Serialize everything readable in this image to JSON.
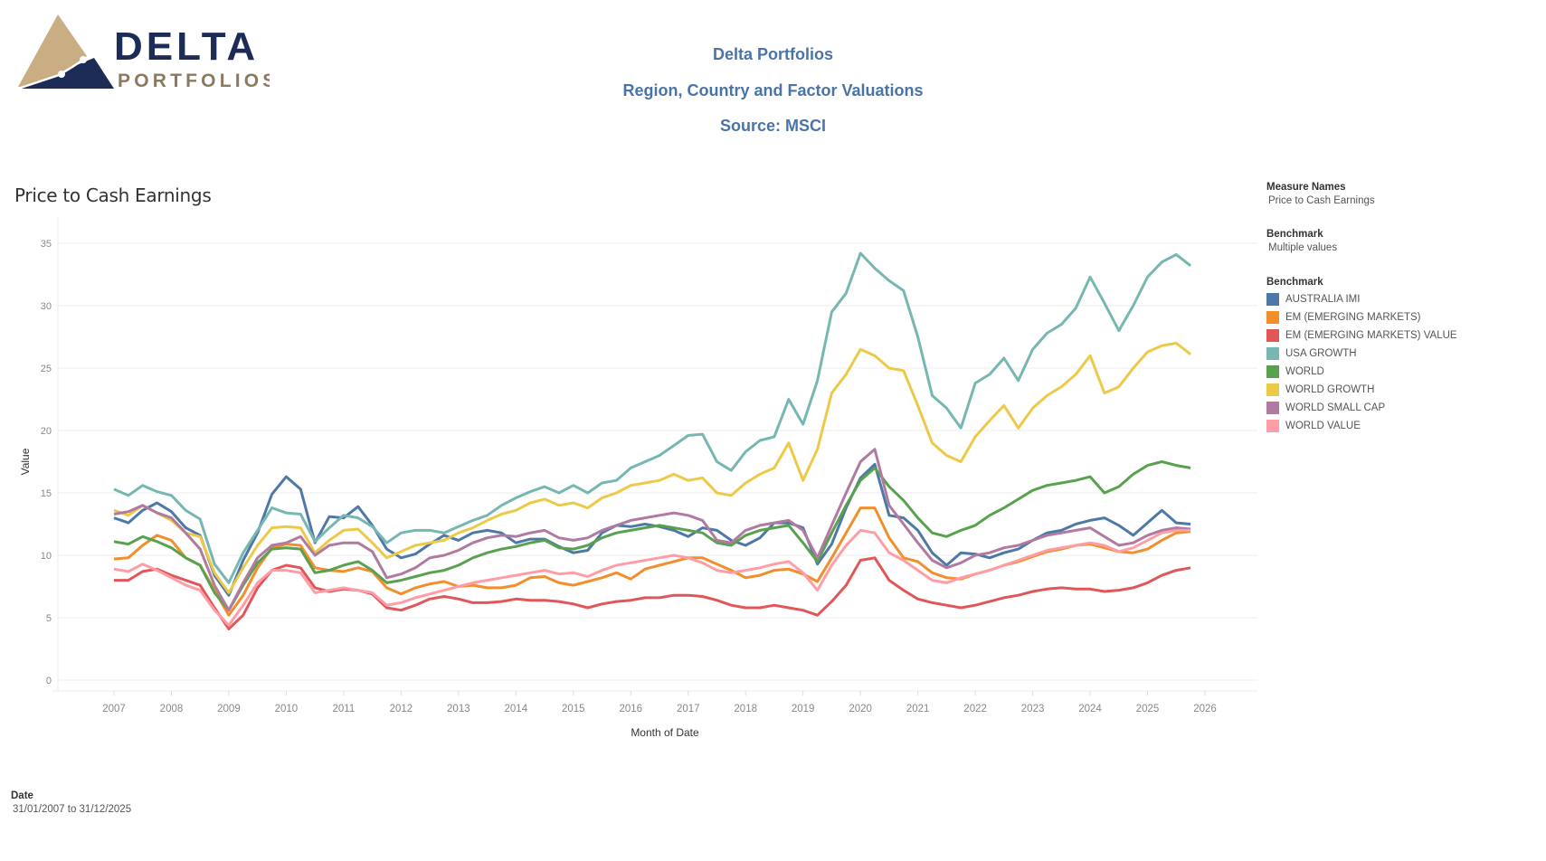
{
  "logo": {
    "word1": "DELTA",
    "word2": "PORTFOLIOS",
    "colors": {
      "navy": "#1d2b57",
      "gold": "#c8ae82",
      "taupe": "#8b7a62"
    }
  },
  "header": {
    "line1": "Delta Portfolios",
    "line2": "Region, Country and Factor Valuations",
    "line3": "Source: MSCI"
  },
  "filters": {
    "measure_names_label": "Measure Names",
    "measure_names_value": "Price to Cash Earnings",
    "benchmark_label": "Benchmark",
    "benchmark_value": "Multiple values",
    "legend_label": "Benchmark",
    "date_label": "Date",
    "date_value": "31/01/2007 to 31/12/2025"
  },
  "chart_data": {
    "type": "line",
    "title": "Price to Cash Earnings",
    "xlabel": "Month of Date",
    "ylabel": "Value",
    "ylim": [
      0,
      35
    ],
    "yticks": [
      0,
      5,
      10,
      15,
      20,
      25,
      30,
      35
    ],
    "xticks": [
      "2007",
      "2008",
      "2009",
      "2010",
      "2011",
      "2012",
      "2013",
      "2014",
      "2015",
      "2016",
      "2017",
      "2018",
      "2019",
      "2020",
      "2021",
      "2022",
      "2023",
      "2024",
      "2025",
      "2026"
    ],
    "x_start": "2007-01",
    "x_step": "quarter",
    "grid": true,
    "legend_position": "right",
    "series": [
      {
        "name": "AUSTRALIA IMI",
        "color": "#4e79a7",
        "values": [
          13.0,
          12.6,
          13.6,
          14.2,
          13.5,
          12.2,
          11.6,
          8.4,
          6.8,
          9.6,
          11.8,
          14.9,
          16.3,
          15.3,
          11.0,
          13.1,
          13.0,
          13.9,
          12.4,
          10.5,
          9.8,
          10.1,
          10.9,
          11.6,
          11.2,
          11.8,
          12.0,
          11.8,
          11.0,
          11.3,
          11.3,
          10.7,
          10.2,
          10.4,
          11.8,
          12.4,
          12.3,
          12.5,
          12.3,
          12.0,
          11.5,
          12.2,
          12.0,
          11.2,
          10.8,
          11.4,
          12.6,
          12.6,
          12.2,
          9.3,
          10.9,
          13.8,
          16.2,
          17.3,
          13.2,
          13.0,
          12.0,
          10.2,
          9.2,
          10.2,
          10.1,
          9.8,
          10.2,
          10.5,
          11.2,
          11.8,
          12.0,
          12.5,
          12.8,
          13.0,
          12.4,
          11.6,
          12.6,
          13.6,
          12.6,
          12.5
        ]
      },
      {
        "name": "EM (EMERGING MARKETS)",
        "color": "#f28e2b",
        "values": [
          9.7,
          9.8,
          10.8,
          11.6,
          11.2,
          9.8,
          9.2,
          7.2,
          5.2,
          6.8,
          9.0,
          10.6,
          10.9,
          10.8,
          9.0,
          8.8,
          8.7,
          9.0,
          8.7,
          7.4,
          6.9,
          7.4,
          7.7,
          7.9,
          7.5,
          7.6,
          7.4,
          7.4,
          7.6,
          8.2,
          8.3,
          7.8,
          7.6,
          7.9,
          8.2,
          8.6,
          8.1,
          8.9,
          9.2,
          9.5,
          9.8,
          9.8,
          9.3,
          8.8,
          8.2,
          8.4,
          8.8,
          8.9,
          8.5,
          7.9,
          9.8,
          11.8,
          13.8,
          13.8,
          11.4,
          9.8,
          9.5,
          8.6,
          8.2,
          8.1,
          8.5,
          8.8,
          9.2,
          9.5,
          9.9,
          10.3,
          10.5,
          10.8,
          10.9,
          10.6,
          10.3,
          10.2,
          10.5,
          11.2,
          11.8,
          11.9
        ]
      },
      {
        "name": "EM (EMERGING MARKETS) VALUE",
        "color": "#e15759",
        "values": [
          8.0,
          8.0,
          8.7,
          8.9,
          8.4,
          8.0,
          7.6,
          5.8,
          4.1,
          5.2,
          7.4,
          8.8,
          9.2,
          9.0,
          7.4,
          7.1,
          7.3,
          7.2,
          6.9,
          5.8,
          5.6,
          6.0,
          6.5,
          6.7,
          6.5,
          6.2,
          6.2,
          6.3,
          6.5,
          6.4,
          6.4,
          6.3,
          6.1,
          5.8,
          6.1,
          6.3,
          6.4,
          6.6,
          6.6,
          6.8,
          6.8,
          6.7,
          6.4,
          6.0,
          5.8,
          5.8,
          6.0,
          5.8,
          5.6,
          5.2,
          6.3,
          7.6,
          9.6,
          9.8,
          8.0,
          7.2,
          6.5,
          6.2,
          6.0,
          5.8,
          6.0,
          6.3,
          6.6,
          6.8,
          7.1,
          7.3,
          7.4,
          7.3,
          7.3,
          7.1,
          7.2,
          7.4,
          7.8,
          8.4,
          8.8,
          9.0
        ]
      },
      {
        "name": "USA GROWTH",
        "color": "#76b7b2",
        "values": [
          15.3,
          14.8,
          15.6,
          15.1,
          14.8,
          13.6,
          12.9,
          9.3,
          7.8,
          10.2,
          12.0,
          13.8,
          13.4,
          13.3,
          11.1,
          12.2,
          13.2,
          13.0,
          12.3,
          11.0,
          11.8,
          12.0,
          12.0,
          11.8,
          12.3,
          12.8,
          13.2,
          14.0,
          14.6,
          15.1,
          15.5,
          15.0,
          15.6,
          15.0,
          15.8,
          16.0,
          17.0,
          17.5,
          18.0,
          18.8,
          19.6,
          19.7,
          17.5,
          16.8,
          18.3,
          19.2,
          19.5,
          22.5,
          20.5,
          24.0,
          29.5,
          31.0,
          34.2,
          33.0,
          32.0,
          31.2,
          27.5,
          22.8,
          21.8,
          20.2,
          23.8,
          24.5,
          25.8,
          24.0,
          26.5,
          27.8,
          28.5,
          29.8,
          32.3,
          30.2,
          28.0,
          30.0,
          32.3,
          33.5,
          34.1,
          33.2
        ]
      },
      {
        "name": "WORLD",
        "color": "#59a14f",
        "values": [
          11.1,
          10.9,
          11.5,
          11.1,
          10.6,
          9.8,
          9.2,
          7.0,
          5.6,
          7.6,
          9.4,
          10.5,
          10.6,
          10.5,
          8.6,
          8.8,
          9.2,
          9.5,
          8.8,
          7.8,
          8.0,
          8.3,
          8.6,
          8.8,
          9.2,
          9.8,
          10.2,
          10.5,
          10.7,
          11.0,
          11.2,
          10.6,
          10.5,
          10.8,
          11.4,
          11.8,
          12.0,
          12.2,
          12.4,
          12.2,
          12.0,
          11.8,
          11.0,
          10.8,
          11.6,
          12.0,
          12.2,
          12.4,
          11.0,
          9.5,
          11.8,
          14.0,
          16.0,
          17.0,
          15.5,
          14.4,
          13.0,
          11.8,
          11.5,
          12.0,
          12.4,
          13.2,
          13.8,
          14.5,
          15.2,
          15.6,
          15.8,
          16.0,
          16.3,
          15.0,
          15.5,
          16.5,
          17.2,
          17.5,
          17.2,
          17.0
        ]
      },
      {
        "name": "WORLD GROWTH",
        "color": "#edc948",
        "values": [
          13.6,
          13.2,
          14.0,
          13.4,
          12.8,
          11.8,
          11.5,
          8.6,
          7.0,
          9.0,
          10.8,
          12.2,
          12.3,
          12.2,
          10.2,
          11.2,
          12.0,
          12.1,
          11.0,
          9.8,
          10.3,
          10.8,
          11.0,
          11.2,
          11.8,
          12.2,
          12.8,
          13.3,
          13.6,
          14.2,
          14.5,
          14.0,
          14.2,
          13.8,
          14.6,
          15.0,
          15.6,
          15.8,
          16.0,
          16.5,
          16.0,
          16.2,
          15.0,
          14.8,
          15.8,
          16.5,
          17.0,
          19.0,
          16.0,
          18.5,
          23.0,
          24.5,
          26.5,
          26.0,
          25.0,
          24.8,
          22.0,
          19.0,
          18.0,
          17.5,
          19.5,
          20.8,
          22.0,
          20.2,
          21.8,
          22.8,
          23.5,
          24.5,
          26.0,
          23.0,
          23.5,
          25.0,
          26.3,
          26.8,
          27.0,
          26.1
        ]
      },
      {
        "name": "WORLD SMALL CAP",
        "color": "#b07aa1",
        "values": [
          13.3,
          13.5,
          14.0,
          13.4,
          13.0,
          11.8,
          10.5,
          7.6,
          5.6,
          7.8,
          9.8,
          10.8,
          11.0,
          11.5,
          10.0,
          10.8,
          11.0,
          11.0,
          10.3,
          8.2,
          8.5,
          9.0,
          9.8,
          10.0,
          10.4,
          11.0,
          11.4,
          11.6,
          11.5,
          11.8,
          12.0,
          11.4,
          11.2,
          11.4,
          12.0,
          12.4,
          12.8,
          13.0,
          13.2,
          13.4,
          13.2,
          12.8,
          11.2,
          11.0,
          12.0,
          12.4,
          12.6,
          12.8,
          12.0,
          9.8,
          12.4,
          15.0,
          17.5,
          18.5,
          14.0,
          12.5,
          11.0,
          9.6,
          9.0,
          9.4,
          10.0,
          10.2,
          10.6,
          10.8,
          11.2,
          11.6,
          11.8,
          12.0,
          12.2,
          11.5,
          10.8,
          11.0,
          11.6,
          12.0,
          12.2,
          12.1
        ]
      },
      {
        "name": "WORLD VALUE",
        "color": "#ff9da7",
        "values": [
          8.9,
          8.7,
          9.3,
          8.8,
          8.2,
          7.6,
          7.2,
          5.6,
          4.4,
          6.0,
          7.8,
          8.8,
          8.8,
          8.6,
          7.0,
          7.2,
          7.4,
          7.2,
          7.0,
          6.0,
          6.2,
          6.6,
          6.9,
          7.2,
          7.5,
          7.8,
          8.0,
          8.2,
          8.4,
          8.6,
          8.8,
          8.5,
          8.6,
          8.3,
          8.8,
          9.2,
          9.4,
          9.6,
          9.8,
          10.0,
          9.8,
          9.4,
          8.8,
          8.6,
          8.8,
          9.0,
          9.3,
          9.5,
          8.6,
          7.2,
          9.2,
          10.8,
          12.0,
          11.8,
          10.2,
          9.6,
          8.8,
          8.0,
          7.8,
          8.2,
          8.5,
          8.8,
          9.2,
          9.6,
          10.0,
          10.4,
          10.6,
          10.8,
          11.0,
          10.8,
          10.3,
          10.6,
          11.2,
          11.8,
          12.0,
          12.0
        ]
      }
    ]
  }
}
